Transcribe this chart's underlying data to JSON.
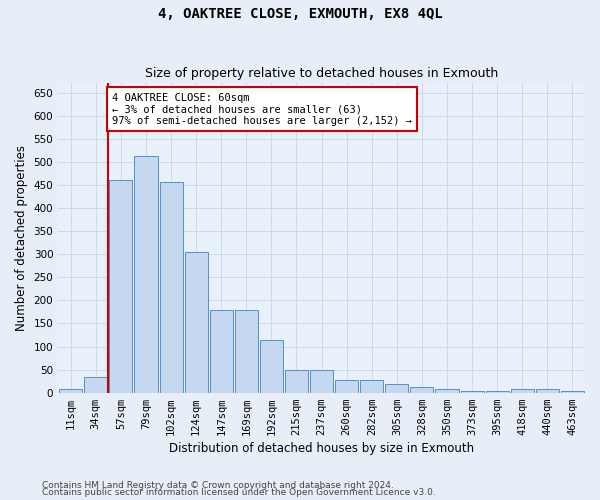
{
  "title": "4, OAKTREE CLOSE, EXMOUTH, EX8 4QL",
  "subtitle": "Size of property relative to detached houses in Exmouth",
  "xlabel": "Distribution of detached houses by size in Exmouth",
  "ylabel": "Number of detached properties",
  "categories": [
    "11sqm",
    "34sqm",
    "57sqm",
    "79sqm",
    "102sqm",
    "124sqm",
    "147sqm",
    "169sqm",
    "192sqm",
    "215sqm",
    "237sqm",
    "260sqm",
    "282sqm",
    "305sqm",
    "328sqm",
    "350sqm",
    "373sqm",
    "395sqm",
    "418sqm",
    "440sqm",
    "463sqm"
  ],
  "values": [
    7,
    35,
    460,
    512,
    457,
    305,
    180,
    180,
    115,
    50,
    50,
    27,
    27,
    19,
    13,
    9,
    4,
    4,
    7,
    7,
    4
  ],
  "bar_color": "#c5d8f0",
  "bar_edge_color": "#5590c8",
  "vline_x_index": 2,
  "vline_color": "#cc0000",
  "annotation_title": "4 OAKTREE CLOSE: 60sqm",
  "annotation_line1": "← 3% of detached houses are smaller (63)",
  "annotation_line2": "97% of semi-detached houses are larger (2,152) →",
  "annotation_box_facecolor": "#ffffff",
  "annotation_box_edgecolor": "#cc0000",
  "ylim": [
    0,
    670
  ],
  "yticks": [
    0,
    50,
    100,
    150,
    200,
    250,
    300,
    350,
    400,
    450,
    500,
    550,
    600,
    650
  ],
  "bg_color": "#e8eef7",
  "plot_bg_color": "#e8f0fa",
  "grid_color": "#c8d4e8",
  "footnote1": "Contains HM Land Registry data © Crown copyright and database right 2024.",
  "footnote2": "Contains public sector information licensed under the Open Government Licence v3.0.",
  "title_fontsize": 10,
  "subtitle_fontsize": 9,
  "axis_label_fontsize": 8.5,
  "tick_fontsize": 7.5,
  "annotation_fontsize": 7.5,
  "footnote_fontsize": 6.5
}
